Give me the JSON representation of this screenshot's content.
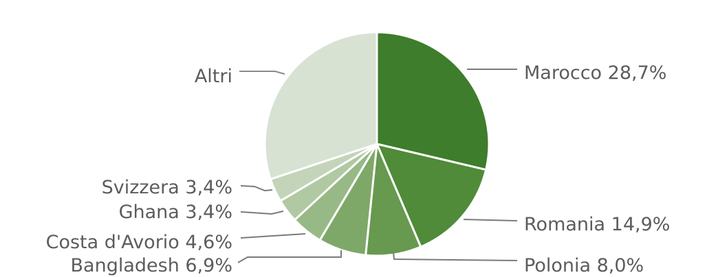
{
  "chart_data": {
    "type": "pie",
    "title": "",
    "start_angle_deg": 0,
    "direction": "clockwise",
    "label_format": "{name} {value}%",
    "slices": [
      {
        "name": "Marocco",
        "value": 28.7,
        "display": "28,7%",
        "color": "#3d7d2b"
      },
      {
        "name": "Romania",
        "value": 14.9,
        "display": "14,9%",
        "color": "#4f8b39"
      },
      {
        "name": "Polonia",
        "value": 8.0,
        "display": "8,0%",
        "color": "#67994f"
      },
      {
        "name": "Bangladesh",
        "value": 6.9,
        "display": "6,9%",
        "color": "#7ea868"
      },
      {
        "name": "Costa d'Avorio",
        "value": 4.6,
        "display": "4,6%",
        "color": "#97b985"
      },
      {
        "name": "Ghana",
        "value": 3.4,
        "display": "3,4%",
        "color": "#b0c9a2"
      },
      {
        "name": "Svizzera",
        "value": 3.4,
        "display": "3,4%",
        "color": "#c3d4b9"
      },
      {
        "name": "Altri",
        "value": 30.1,
        "display": "",
        "color": "#d8e2d3"
      }
    ]
  }
}
